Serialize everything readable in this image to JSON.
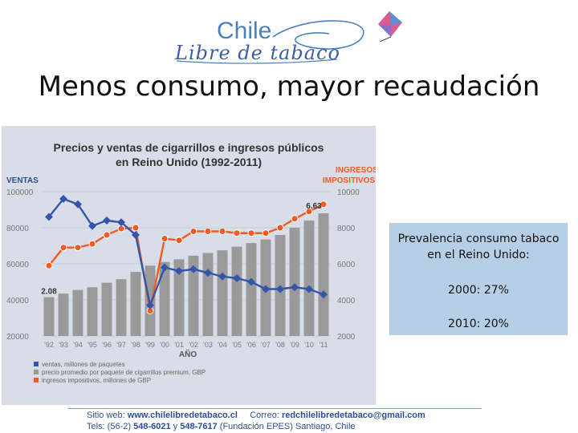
{
  "logo": {
    "chile": "Chile",
    "libre": "Libre de tabaco"
  },
  "slide_title": "Menos consumo, mayor recaudación",
  "info_box": {
    "heading": "Prevalencia consumo tabaco en el Reino Unido:",
    "line_2000": "2000:  27%",
    "line_2010": "2010:  20%"
  },
  "footer": {
    "web_label": "Sitio web:",
    "web_value": "www.chilelibredetabaco.cl",
    "mail_label": "Correo:",
    "mail_value": "redchilelibredetabaco@gmail.com",
    "tel_label": "Tels: (56-2)",
    "tel1": "548-6021",
    "tel_and": "y",
    "tel2": "548-7617",
    "org": "(Fundación EPES)  Santiago, Chile"
  },
  "chart_data": {
    "type": "bar",
    "title_line1": "Precios y ventas de cigarrillos e ingresos públicos",
    "title_line2": "en Reino Unido (1992-2011)",
    "left_axis_label": "VENTAS",
    "right_axis_label_line1": "INGRESOS",
    "right_axis_label_line2": "IMPOSITIVOS",
    "xlabel": "AÑO",
    "categories": [
      "'92",
      "'93",
      "'94",
      "'95",
      "'96",
      "'97",
      "'98",
      "'99",
      "'00",
      "'01",
      "'02",
      "'03",
      "'04",
      "'05",
      "'06",
      "'07",
      "'08",
      "'09",
      "'10",
      "'11"
    ],
    "left_ticks": [
      "20000",
      "40000",
      "60000",
      "80000",
      "100000"
    ],
    "right_ticks": [
      "2000",
      "4000",
      "6000",
      "8000",
      "10000"
    ],
    "ylim_left": [
      20000,
      100000
    ],
    "ylim_right": [
      2000,
      10000
    ],
    "price_first_label": "2.08",
    "price_last_label": "6.63",
    "series": [
      {
        "name": "ventas, millones de paquetes",
        "axis": "left",
        "kind": "line",
        "color": "#3355aa",
        "values": [
          86000,
          96000,
          93000,
          81000,
          84000,
          83000,
          76000,
          37000,
          58000,
          56000,
          57000,
          55000,
          53000,
          52000,
          50000,
          46000,
          46000,
          47000,
          46000,
          43000
        ]
      },
      {
        "name": "precio promedio por paquete de cigarrillos premium, GBP",
        "axis": "left",
        "kind": "bar",
        "color": "#9a9a9a",
        "values": [
          41500,
          43500,
          45500,
          47000,
          49500,
          51500,
          55500,
          59000,
          61000,
          62500,
          64500,
          66000,
          67500,
          69500,
          71500,
          73500,
          76000,
          80000,
          84000,
          88000
        ]
      },
      {
        "name": "ingresos impositivos, millones de GBP",
        "axis": "right",
        "kind": "line",
        "color": "#f15a24",
        "values": [
          5900,
          6900,
          6900,
          7100,
          7600,
          7950,
          8000,
          3400,
          7400,
          7300,
          7800,
          7800,
          7800,
          7700,
          7700,
          7700,
          8000,
          8500,
          8900,
          9300
        ]
      }
    ]
  }
}
